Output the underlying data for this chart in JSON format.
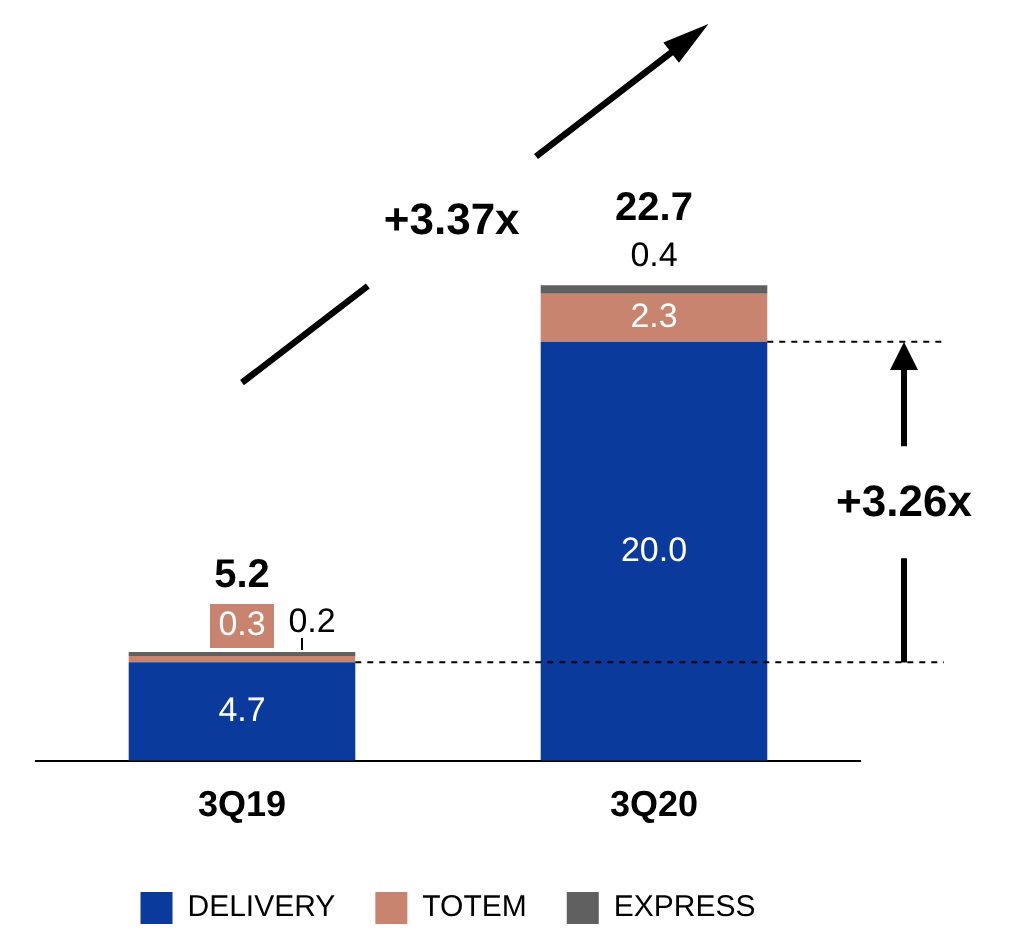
{
  "chart_data": {
    "type": "bar",
    "stacked": true,
    "categories": [
      "3Q19",
      "3Q20"
    ],
    "series": [
      {
        "name": "DELIVERY",
        "color": "#0a3a9c",
        "values": [
          4.7,
          20.0
        ],
        "value_labels": [
          "4.7",
          "20.0"
        ]
      },
      {
        "name": "TOTEM",
        "color": "#c98470",
        "values": [
          0.3,
          2.3
        ],
        "value_labels": [
          "0.3",
          "2.3"
        ]
      },
      {
        "name": "EXPRESS",
        "color": "#606060",
        "values": [
          0.2,
          0.4
        ],
        "value_labels": [
          "0.2",
          "0.4"
        ]
      }
    ],
    "totals": [
      "5.2",
      "22.7"
    ],
    "annotations": [
      "+3.37x",
      "+3.26x"
    ],
    "ref_lines": [
      {
        "axis": "y",
        "value": 4.7,
        "line_style": "dashed"
      },
      {
        "axis": "y",
        "value": 20.0,
        "line_style": "dashed"
      }
    ],
    "legend": "bottom"
  }
}
